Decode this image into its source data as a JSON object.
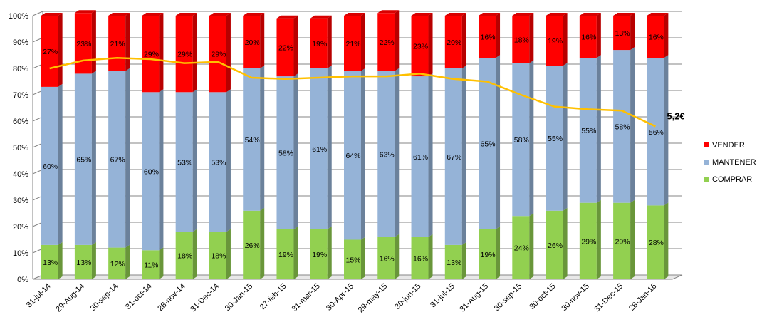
{
  "chart_data": {
    "type": "bar",
    "stacked": true,
    "percent_stacked": true,
    "categories": [
      "31-jul-14",
      "29-Aug-14",
      "30-sep-14",
      "31-oct-14",
      "28-nov-14",
      "31-Dec-14",
      "30-Jan-15",
      "27-feb-15",
      "31-mar-15",
      "30-Apr-15",
      "29-may-15",
      "30-jun-15",
      "31-jul-15",
      "31-Aug-15",
      "30-sep-15",
      "30-oct-15",
      "30-nov-15",
      "31-Dec-15",
      "28-Jan-16"
    ],
    "series": [
      {
        "name": "COMPRAR",
        "color": "#92d050",
        "values": [
          13,
          13,
          12,
          11,
          18,
          18,
          26,
          19,
          19,
          15,
          16,
          16,
          13,
          19,
          24,
          26,
          29,
          29,
          28
        ],
        "labels": [
          "13%",
          "13%",
          "12%",
          "11%",
          "18%",
          "18%",
          "26%",
          "19%",
          "19%",
          "15%",
          "16%",
          "16%",
          "13%",
          "19%",
          "24%",
          "26%",
          "29%",
          "29%",
          "28%"
        ]
      },
      {
        "name": "MANTENER",
        "color": "#95b3d7",
        "values": [
          60,
          65,
          67,
          60,
          53,
          53,
          54,
          58,
          61,
          64,
          63,
          61,
          67,
          65,
          58,
          55,
          55,
          58,
          56
        ],
        "labels": [
          "60%",
          "65%",
          "67%",
          "60%",
          "53%",
          "53%",
          "54%",
          "58%",
          "61%",
          "64%",
          "63%",
          "61%",
          "67%",
          "65%",
          "58%",
          "55%",
          "55%",
          "58%",
          "56%"
        ]
      },
      {
        "name": "VENDER",
        "color": "#ff0000",
        "values": [
          27,
          23,
          21,
          29,
          29,
          29,
          20,
          22,
          19,
          21,
          22,
          23,
          20,
          16,
          18,
          19,
          16,
          13,
          16
        ],
        "labels": [
          "27%",
          "23%",
          "21%",
          "29%",
          "29%",
          "29%",
          "20%",
          "22%",
          "19%",
          "21%",
          "22%",
          "23%",
          "20%",
          "16%",
          "18%",
          "19%",
          "16%",
          "13%",
          "16%"
        ]
      }
    ],
    "line": {
      "color": "#ffc000",
      "values_pct_of_axis": [
        80,
        83,
        84,
        83.5,
        82,
        82.5,
        76.5,
        76,
        76.5,
        77,
        77,
        78,
        76,
        75,
        70,
        65.5,
        64.5,
        64,
        58
      ],
      "end_label": "5,2€"
    },
    "y_ticks": [
      "0%",
      "10%",
      "20%",
      "30%",
      "40%",
      "50%",
      "60%",
      "70%",
      "80%",
      "90%",
      "100%"
    ],
    "ylim": [
      0,
      100
    ],
    "grid": true,
    "legend": {
      "position": "right",
      "order": [
        "VENDER",
        "MANTENER",
        "COMPRAR"
      ]
    },
    "title": "",
    "xlabel": "",
    "ylabel": ""
  }
}
